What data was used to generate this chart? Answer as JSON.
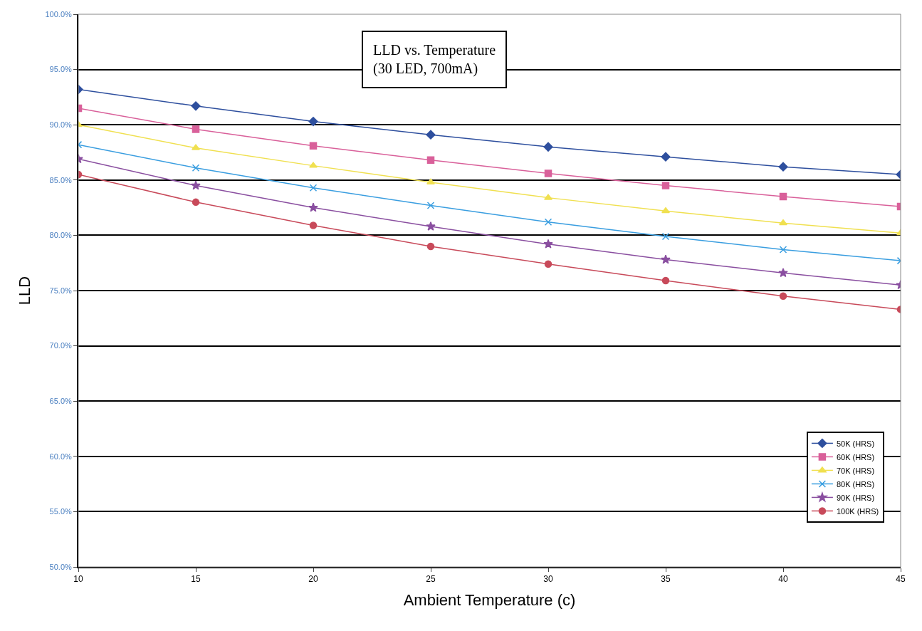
{
  "chart_data": {
    "type": "line",
    "title": "LLD vs. Temperature\n(30 LED, 700mA)",
    "xlabel": "Ambient Temperature (c)",
    "ylabel": "LLD",
    "x": [
      10,
      15,
      20,
      25,
      30,
      35,
      40,
      45
    ],
    "series": [
      {
        "name": "50K (HRS)",
        "color": "#2e4f9e",
        "marker": "diamond",
        "values": [
          93.2,
          91.7,
          90.3,
          89.1,
          88.0,
          87.1,
          86.2,
          85.5
        ]
      },
      {
        "name": "60K (HRS)",
        "color": "#d9609a",
        "marker": "square",
        "values": [
          91.5,
          89.6,
          88.1,
          86.8,
          85.6,
          84.5,
          83.5,
          82.6
        ]
      },
      {
        "name": "70K (HRS)",
        "color": "#f0e050",
        "marker": "triangle",
        "values": [
          90.0,
          87.9,
          86.3,
          84.8,
          83.4,
          82.2,
          81.1,
          80.2
        ]
      },
      {
        "name": "80K (HRS)",
        "color": "#3a9ee0",
        "marker": "cross",
        "values": [
          88.2,
          86.1,
          84.3,
          82.7,
          81.2,
          79.9,
          78.7,
          77.7
        ]
      },
      {
        "name": "90K (HRS)",
        "color": "#8a4fa0",
        "marker": "star",
        "values": [
          86.9,
          84.5,
          82.5,
          80.8,
          79.2,
          77.8,
          76.6,
          75.5
        ]
      },
      {
        "name": "100K (HRS)",
        "color": "#c84a5a",
        "marker": "circle",
        "values": [
          85.5,
          83.0,
          80.9,
          79.0,
          77.4,
          75.9,
          74.5,
          73.3
        ]
      }
    ],
    "xlim": [
      10,
      45
    ],
    "xticks": [
      10,
      15,
      20,
      25,
      30,
      35,
      40,
      45
    ],
    "ylim": [
      50,
      100
    ],
    "yticks": [
      {
        "value": 50,
        "label": "50.0%"
      },
      {
        "value": 55,
        "label": "55.0%"
      },
      {
        "value": 60,
        "label": "60.0%"
      },
      {
        "value": 65,
        "label": "65.0%"
      },
      {
        "value": 70,
        "label": "70.0%"
      },
      {
        "value": 75,
        "label": "75.0%"
      },
      {
        "value": 80,
        "label": "80.0%"
      },
      {
        "value": 85,
        "label": "85.0%"
      },
      {
        "value": 90,
        "label": "90.0%"
      },
      {
        "value": 95,
        "label": "95.0%"
      },
      {
        "value": 100,
        "label": "100.0%"
      }
    ],
    "grid": "y",
    "legend": "bottom right",
    "line_style": "solid"
  }
}
